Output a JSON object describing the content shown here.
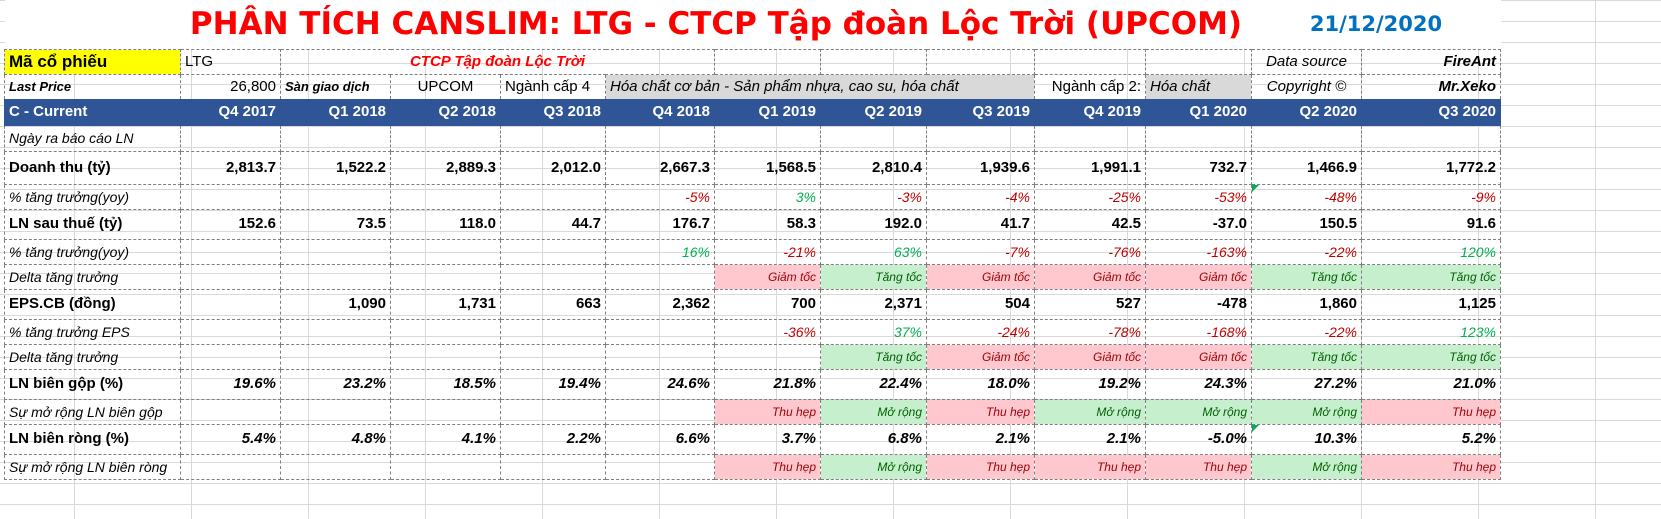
{
  "title": "PHÂN TÍCH CANSLIM: LTG - CTCP Tập đoàn Lộc Trời (UPCOM)",
  "date": "21/12/2020",
  "info": {
    "ticker_label": "Mã cổ phiếu",
    "ticker": "LTG",
    "company": "CTCP Tập đoàn Lộc Trời",
    "data_source_label": "Data source",
    "data_source": "FireAnt",
    "last_price_label": "Last Price",
    "last_price": "26,800",
    "exchange_label": "Sàn giao dịch",
    "exchange": "UPCOM",
    "industry4_label": "Ngành cấp 4",
    "industry4": "Hóa chất cơ bản - Sản phẩm nhựa, cao su, hóa chất",
    "industry2_label": "Ngành cấp 2:",
    "industry2": "Hóa chất",
    "copyright_label": "Copyright ©",
    "copyright": "Mr.Xeko"
  },
  "header": {
    "label": "C - Current",
    "quarters": [
      "Q4 2017",
      "Q1 2018",
      "Q2 2018",
      "Q3 2018",
      "Q4 2018",
      "Q1 2019",
      "Q2 2019",
      "Q3 2019",
      "Q4 2019",
      "Q1 2020",
      "Q2 2020",
      "Q3 2020"
    ]
  },
  "rows": {
    "report_date": {
      "label": "Ngày ra báo cáo LN"
    },
    "revenue": {
      "label": "Doanh thu (tỷ)",
      "values": [
        "2,813.7",
        "1,522.2",
        "2,889.3",
        "2,012.0",
        "2,667.3",
        "1,568.5",
        "2,810.4",
        "1,939.6",
        "1,991.1",
        "732.7",
        "1,466.9",
        "1,772.2"
      ]
    },
    "revenue_growth": {
      "label": "% tăng trưởng(yoy)",
      "values": [
        "",
        "",
        "",
        "",
        "-5%",
        "3%",
        "-3%",
        "-4%",
        "-25%",
        "-53%",
        "-48%",
        "-9%"
      ]
    },
    "net_income": {
      "label": "LN sau thuế (tỷ)",
      "values": [
        "152.6",
        "73.5",
        "118.0",
        "44.7",
        "176.7",
        "58.3",
        "192.0",
        "41.7",
        "42.5",
        "-37.0",
        "150.5",
        "91.6"
      ]
    },
    "net_income_growth": {
      "label": "% tăng trưởng(yoy)",
      "values": [
        "",
        "",
        "",
        "",
        "16%",
        "-21%",
        "63%",
        "-7%",
        "-76%",
        "-163%",
        "-22%",
        "120%"
      ]
    },
    "net_income_delta": {
      "label": "Delta tăng trưởng",
      "values": [
        "",
        "",
        "",
        "",
        "",
        "Giảm tốc",
        "Tăng tốc",
        "Giảm tốc",
        "Giảm tốc",
        "Giảm tốc",
        "Tăng tốc",
        "Tăng tốc"
      ]
    },
    "eps": {
      "label": "EPS.CB (đồng)",
      "values": [
        "",
        "1,090",
        "1,731",
        "663",
        "2,362",
        "700",
        "2,371",
        "504",
        "527",
        "-478",
        "1,860",
        "1,125"
      ]
    },
    "eps_growth": {
      "label": "% tăng trưởng EPS",
      "values": [
        "",
        "",
        "",
        "",
        "",
        "-36%",
        "37%",
        "-24%",
        "-78%",
        "-168%",
        "-22%",
        "123%"
      ]
    },
    "eps_delta": {
      "label": "Delta tăng trưởng",
      "values": [
        "",
        "",
        "",
        "",
        "",
        "",
        "Tăng tốc",
        "Giảm tốc",
        "Giảm tốc",
        "Giảm tốc",
        "Tăng tốc",
        "Tăng tốc"
      ]
    },
    "gross_margin": {
      "label": "LN biên gộp (%)",
      "values": [
        "19.6%",
        "23.2%",
        "18.5%",
        "19.4%",
        "24.6%",
        "21.8%",
        "22.4%",
        "18.0%",
        "19.2%",
        "24.3%",
        "27.2%",
        "21.0%"
      ]
    },
    "gross_margin_exp": {
      "label": "Sự mở rộng LN biên gộp",
      "values": [
        "",
        "",
        "",
        "",
        "",
        "Thu hẹp",
        "Mở rộng",
        "Thu hẹp",
        "Mở rộng",
        "Mở rộng",
        "Mở rộng",
        "Thu hẹp"
      ]
    },
    "net_margin": {
      "label": "LN biên ròng (%)",
      "values": [
        "5.4%",
        "4.8%",
        "4.1%",
        "2.2%",
        "6.6%",
        "3.7%",
        "6.8%",
        "2.1%",
        "2.1%",
        "-5.0%",
        "10.3%",
        "5.2%"
      ]
    },
    "net_margin_exp": {
      "label": "Sự mở rộng LN biên ròng",
      "values": [
        "",
        "",
        "",
        "",
        "",
        "Thu hẹp",
        "Mở rộng",
        "Thu hẹp",
        "Thu hẹp",
        "Thu hẹp",
        "Mở rộng",
        "Thu hẹp"
      ]
    }
  },
  "colors": {
    "header_bg": "#2f5597",
    "title": "#ff0000",
    "date": "#0070c0",
    "bad_bg": "#ffc7ce",
    "good_bg": "#c6efce",
    "negative_text": "#c00000",
    "positive_text": "#00b050"
  }
}
